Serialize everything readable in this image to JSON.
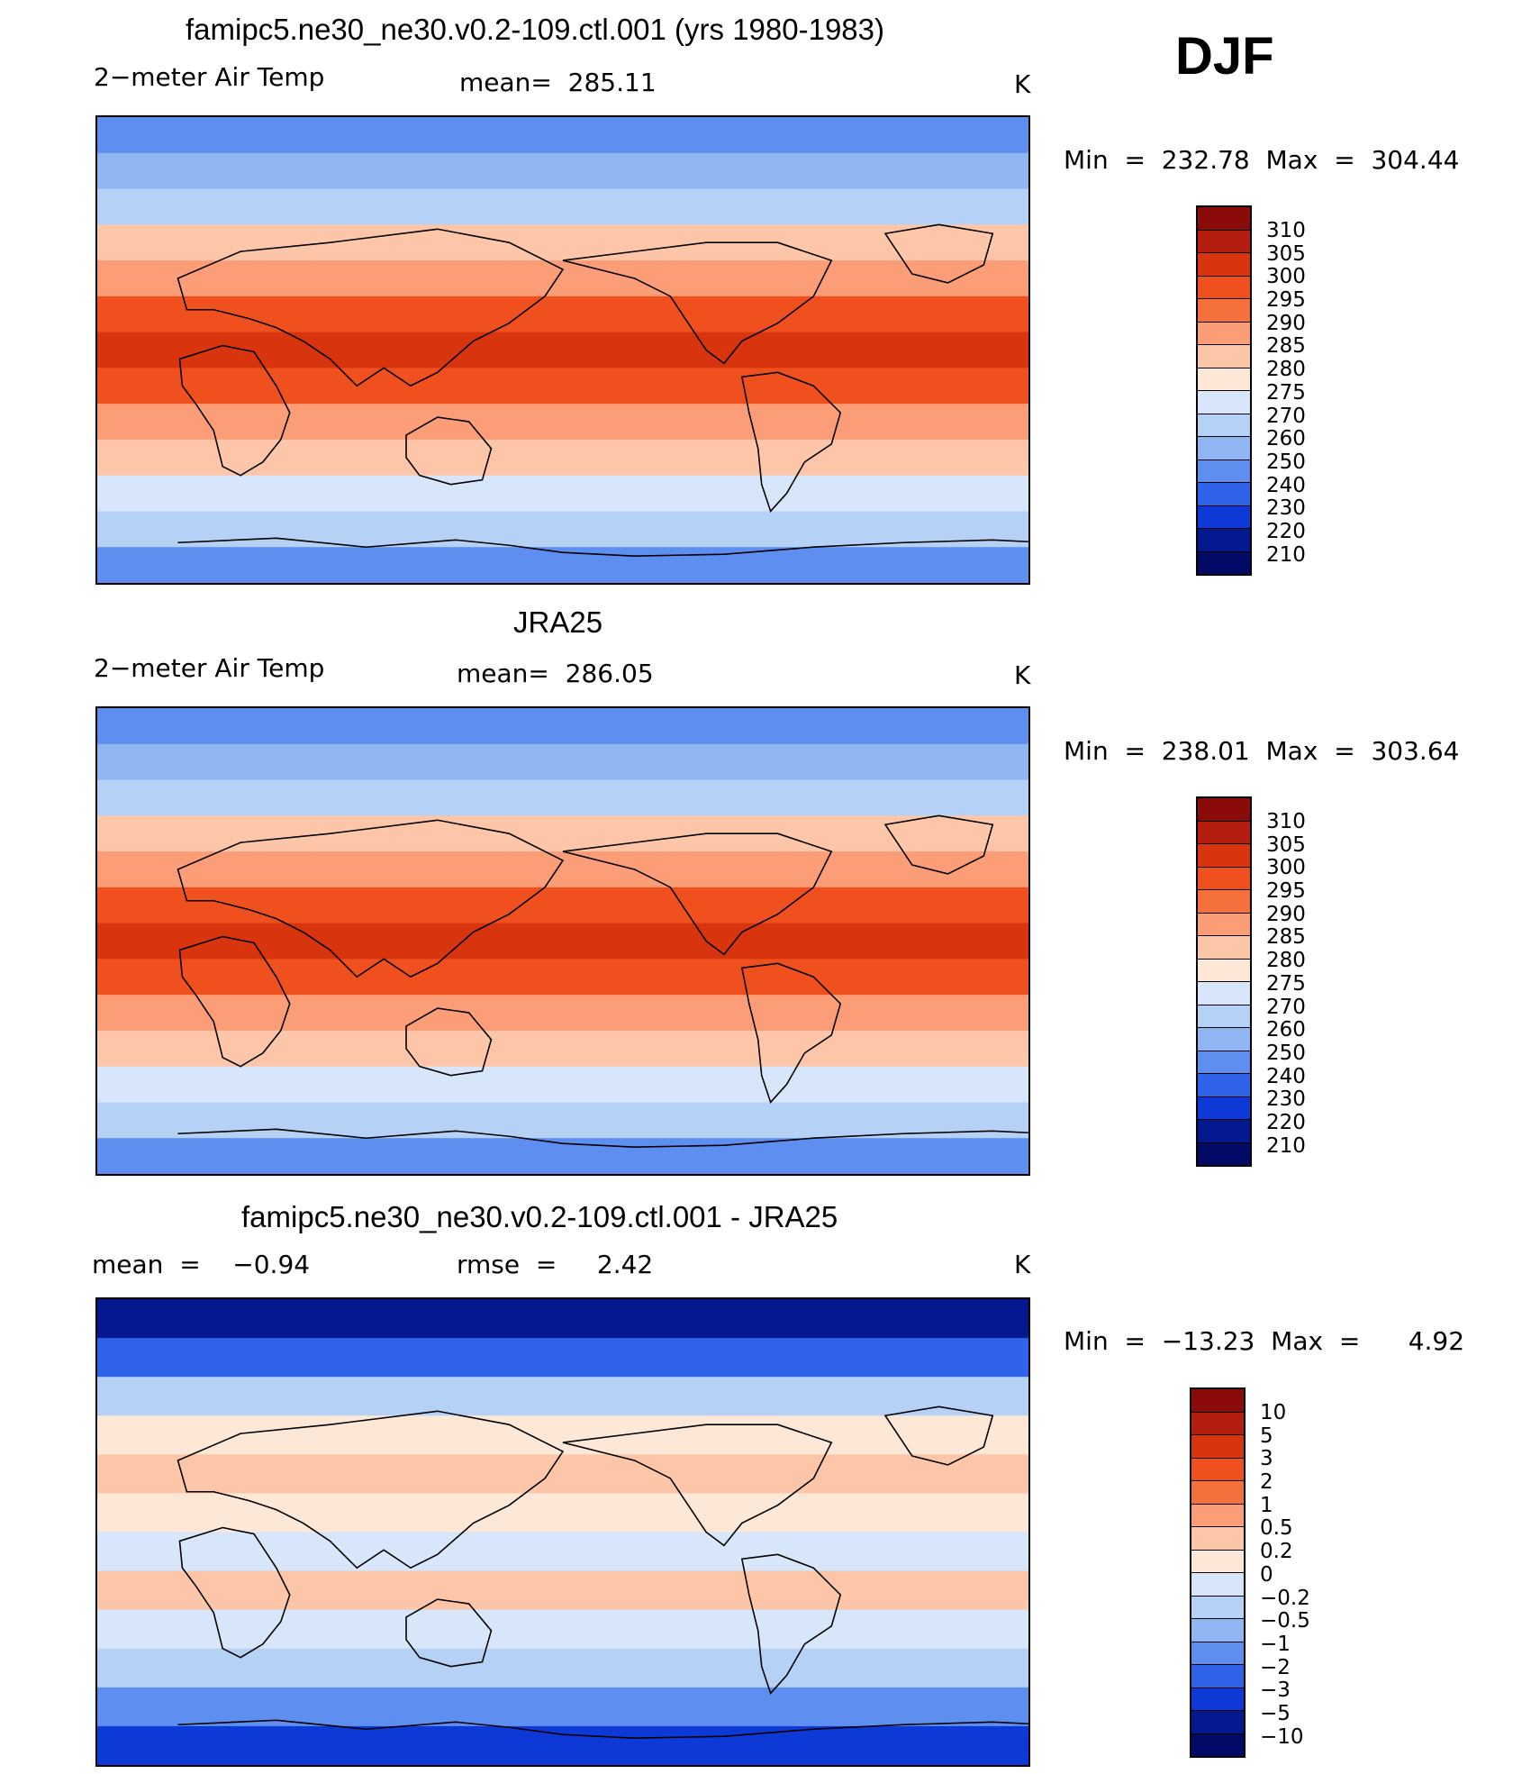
{
  "season": "DJF",
  "unit": "K",
  "panels": [
    {
      "title": "famipc5.ne30_ne30.v0.2-109.ctl.001 (yrs 1980-1983)",
      "left_label": "2−meter Air Temp",
      "center_label": "mean=  285.11",
      "unit": "K",
      "minmax": "Min  =  232.78  Max  =  304.44"
    },
    {
      "title": "JRA25",
      "left_label": "2−meter Air Temp",
      "center_label": "mean=  286.05",
      "unit": "K",
      "minmax": "Min  =  238.01  Max  =  303.64"
    },
    {
      "title": "famipc5.ne30_ne30.v0.2-109.ctl.001 - JRA25",
      "left_label": "mean  =    −0.94",
      "center_label": "rmse  =     2.42",
      "unit": "K",
      "minmax": "Min  =  −13.23  Max  =      4.92"
    }
  ],
  "colorbar_abs": {
    "labels": [
      "310",
      "305",
      "300",
      "295",
      "290",
      "285",
      "280",
      "275",
      "270",
      "260",
      "250",
      "240",
      "230",
      "220",
      "210"
    ],
    "colors": [
      "#8b0a0a",
      "#b41e0e",
      "#d8350f",
      "#f0501e",
      "#f6703e",
      "#fb9d77",
      "#fdc6a9",
      "#fde7d6",
      "#d7e6fa",
      "#b6d1f6",
      "#8fb5f2",
      "#5e8ef0",
      "#2e63ea",
      "#0d3ad6",
      "#04188f",
      "#020a66"
    ]
  },
  "colorbar_diff": {
    "labels": [
      "10",
      "5",
      "3",
      "2",
      "1",
      "0.5",
      "0.2",
      "0",
      "−0.2",
      "−0.5",
      "−1",
      "−2",
      "−3",
      "−5",
      "−10"
    ],
    "colors": [
      "#8b0a0a",
      "#b41e0e",
      "#d8350f",
      "#f0501e",
      "#f6703e",
      "#fb9d77",
      "#fdc6a9",
      "#fde7d6",
      "#d7e6fa",
      "#b6d1f6",
      "#8fb5f2",
      "#5e8ef0",
      "#2e63ea",
      "#0d3ad6",
      "#04188f",
      "#020a66"
    ]
  },
  "map_bands": {
    "abs": [
      "#5e8ef0",
      "#8fb5f2",
      "#b6d1f6",
      "#fdc6a9",
      "#fb9d77",
      "#f0501e",
      "#d8350f",
      "#f0501e",
      "#fb9d77",
      "#fdc6a9",
      "#d7e6fa",
      "#b6d1f6",
      "#5e8ef0"
    ],
    "diff": [
      "#04188f",
      "#2e63ea",
      "#b6d1f6",
      "#fde7d6",
      "#fdc6a9",
      "#fde7d6",
      "#d7e6fa",
      "#fdc6a9",
      "#d7e6fa",
      "#b6d1f6",
      "#5e8ef0",
      "#0d3ad6"
    ]
  }
}
